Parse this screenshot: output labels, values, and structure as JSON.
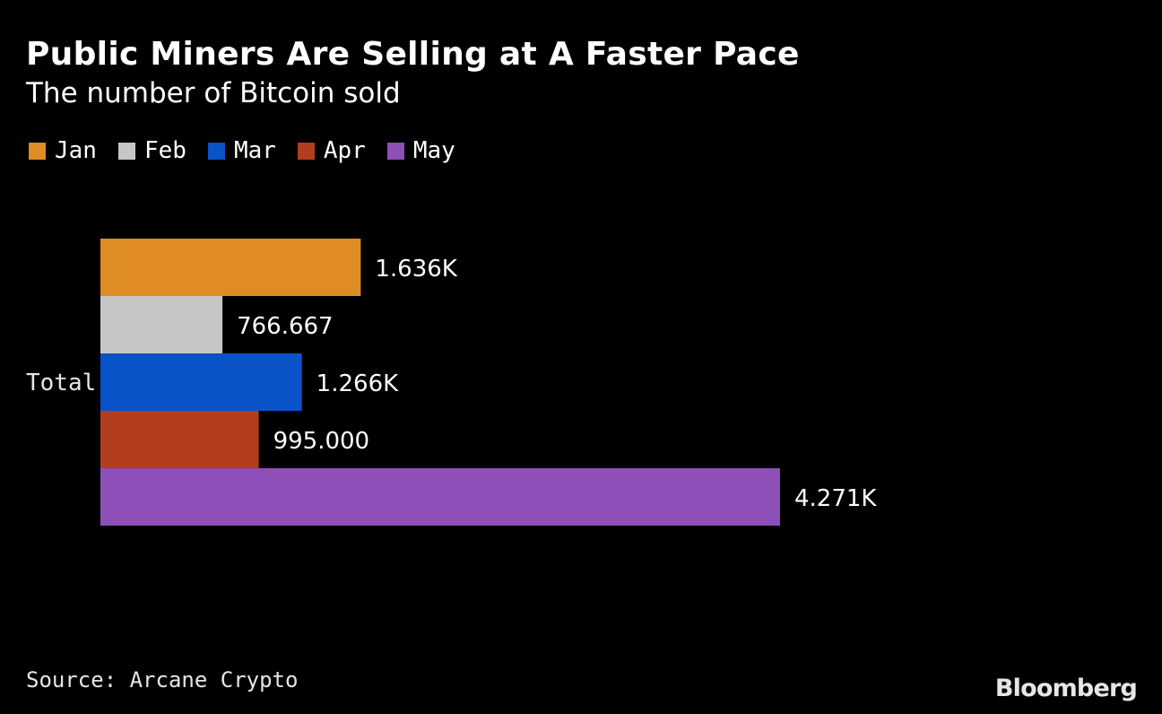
{
  "chart_data": {
    "type": "bar",
    "orientation": "horizontal",
    "title": "Public Miners Are Selling at A Faster Pace",
    "subtitle": "The number of Bitcoin sold",
    "categories": [
      "Total"
    ],
    "series": [
      {
        "name": "Jan",
        "values": [
          1636
        ],
        "label": "1.636K",
        "color": "#e08c24"
      },
      {
        "name": "Feb",
        "values": [
          766.667
        ],
        "label": "766.667",
        "color": "#c6c6c6"
      },
      {
        "name": "Mar",
        "values": [
          1266
        ],
        "label": "1.266K",
        "color": "#0a52c8"
      },
      {
        "name": "Apr",
        "values": [
          995
        ],
        "label": "995.000",
        "color": "#b33e1e"
      },
      {
        "name": "May",
        "values": [
          4271
        ],
        "label": "4.271K",
        "color": "#8e4fb8"
      }
    ],
    "xlim": [
      0,
      4271
    ],
    "grid": false,
    "legend_position": "top-left"
  },
  "footer": {
    "source": "Source: Arcane Crypto",
    "brand": "Bloomberg"
  }
}
